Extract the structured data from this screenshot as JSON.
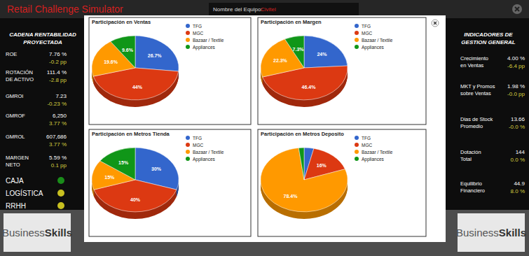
{
  "header": {
    "title": "Retail Challenge Simulator",
    "team_label": "Nombre del Equipo:",
    "team_name": "Civitel"
  },
  "left_panel": {
    "title": "CADENA RENTABILIDAD PROYECTADA",
    "rows": [
      {
        "label": "ROE",
        "value": "7.76 %",
        "change": "-0.2 pp"
      },
      {
        "label": "ROTACIÓN DE ACTIVO",
        "value": "111.4 %",
        "change": "-2.8 pp"
      },
      {
        "label": "GMROI",
        "value": "7.23",
        "change": "-0.23 %"
      },
      {
        "label": "GMROF",
        "value": "6,250",
        "change": "3.77 %"
      },
      {
        "label": "GMROL",
        "value": "607,686",
        "change": "3.77 %"
      },
      {
        "label": "MARGEN NETO",
        "value": "5.59 %",
        "change": "0.1 pp"
      }
    ],
    "status": [
      {
        "label": "CAJA",
        "color": "green"
      },
      {
        "label": "LOGÍSTICA",
        "color": "yellow"
      },
      {
        "label": "RRHH",
        "color": "yellow"
      }
    ]
  },
  "right_panel": {
    "title": "INDICADORES DE GESTION GENERAL",
    "rows": [
      {
        "label": "Crecimiento en Ventas",
        "value": "4.00 %",
        "change": "-6.4 pp"
      },
      {
        "label": "MKT y Promos sobre Ventas",
        "value": "1.98 %",
        "change": "-0.0 pp"
      },
      {
        "label": "Dias de Stock Promedio",
        "value": "13.66",
        "change": "-0.0 %"
      },
      {
        "label": "Dotación Total",
        "value": "144",
        "change": "0.0 %"
      },
      {
        "label": "Equilibrio Financiero",
        "value": "44.9",
        "change": "8.0 %"
      }
    ]
  },
  "logo": [
    "Business",
    "Skills"
  ],
  "chart_data": [
    {
      "type": "pie",
      "title": "Participación en Ventas",
      "categories": [
        "TFG",
        "MGC",
        "Bazaar / Textile",
        "Appliances"
      ],
      "values": [
        26.7,
        44,
        19.6,
        9.6
      ],
      "value_labels": [
        "26.7%",
        "44%",
        "19.6%",
        "9.6%"
      ],
      "colors": [
        "#3366cc",
        "#dc3912",
        "#ff9900",
        "#109618"
      ],
      "data_labels": true,
      "legend": "right"
    },
    {
      "type": "pie",
      "title": "Participación en Margen",
      "categories": [
        "TFG",
        "MGC",
        "Bazaar / Textile",
        "Appliances"
      ],
      "values": [
        24,
        46.4,
        22.3,
        7.3
      ],
      "value_labels": [
        "24%",
        "46.4%",
        "22.3%",
        "7.3%"
      ],
      "colors": [
        "#3366cc",
        "#dc3912",
        "#ff9900",
        "#109618"
      ],
      "data_labels": true,
      "legend": "right"
    },
    {
      "type": "pie",
      "title": "Participación en Metros Tienda",
      "categories": [
        "TFG",
        "MGC",
        "Bazaar / Textile",
        "Appliances"
      ],
      "values": [
        30,
        40,
        15,
        15
      ],
      "value_labels": [
        "30%",
        "40%",
        "15%",
        "15%"
      ],
      "colors": [
        "#3366cc",
        "#dc3912",
        "#ff9900",
        "#109618"
      ],
      "data_labels": true,
      "legend": "right"
    },
    {
      "type": "pie",
      "title": "Participación en Metros Deposito",
      "categories": [
        "TFG",
        "MGC",
        "Bazaar / Textile",
        "Appliances"
      ],
      "values": [
        3.6,
        16,
        78.4,
        2
      ],
      "value_labels": [
        null,
        "16%",
        "78.4%",
        null
      ],
      "colors": [
        "#3366cc",
        "#dc3912",
        "#ff9900",
        "#109618"
      ],
      "data_labels": true,
      "legend": "right"
    }
  ]
}
